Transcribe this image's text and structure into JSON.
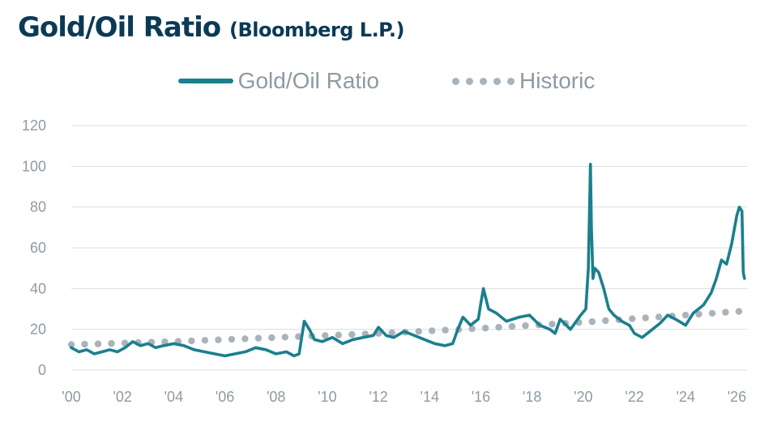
{
  "chart_data": {
    "type": "line",
    "title": "Gold/Oil Ratio",
    "subtitle": "(Bloomberg L.P.)",
    "xlabel": "",
    "ylabel": "",
    "ylim": [
      0,
      120
    ],
    "xlim": [
      2000,
      2026.4
    ],
    "grid": true,
    "legend_position": "top-center",
    "x_ticks": [
      {
        "label": "'00",
        "year": 2000
      },
      {
        "label": "'02",
        "year": 2002
      },
      {
        "label": "'04",
        "year": 2004
      },
      {
        "label": "'06",
        "year": 2006
      },
      {
        "label": "'08",
        "year": 2008
      },
      {
        "label": "'10",
        "year": 2010
      },
      {
        "label": "'12",
        "year": 2012
      },
      {
        "label": "'14",
        "year": 2014
      },
      {
        "label": "'16",
        "year": 2016
      },
      {
        "label": "'18",
        "year": 2018
      },
      {
        "label": "'20",
        "year": 2020
      },
      {
        "label": "'22",
        "year": 2022
      },
      {
        "label": "'24",
        "year": 2024
      },
      {
        "label": "'26",
        "year": 2026
      }
    ],
    "y_ticks": [
      "0",
      "20",
      "40",
      "60",
      "80",
      "100",
      "120"
    ],
    "colors": {
      "ratio": "#1b7f8e",
      "historic": "#a9b3bb",
      "grid": "#d9dde0"
    },
    "series": [
      {
        "name": "Gold/Oil Ratio",
        "style": "solid",
        "x": [
          2000.0,
          2000.3,
          2000.6,
          2000.9,
          2001.2,
          2001.5,
          2001.8,
          2002.1,
          2002.4,
          2002.7,
          2003.0,
          2003.3,
          2003.6,
          2004.0,
          2004.4,
          2004.8,
          2005.2,
          2005.6,
          2006.0,
          2006.4,
          2006.8,
          2007.2,
          2007.6,
          2008.0,
          2008.4,
          2008.7,
          2008.9,
          2009.0,
          2009.1,
          2009.3,
          2009.5,
          2009.8,
          2010.2,
          2010.6,
          2011.0,
          2011.4,
          2011.8,
          2012.0,
          2012.3,
          2012.6,
          2013.0,
          2013.4,
          2013.8,
          2014.2,
          2014.6,
          2014.9,
          2015.1,
          2015.3,
          2015.6,
          2015.9,
          2016.0,
          2016.1,
          2016.3,
          2016.6,
          2017.0,
          2017.5,
          2017.9,
          2018.3,
          2018.7,
          2018.9,
          2019.1,
          2019.5,
          2019.9,
          2020.1,
          2020.2,
          2020.28,
          2020.32,
          2020.38,
          2020.45,
          2020.6,
          2020.8,
          2021.0,
          2021.2,
          2021.5,
          2021.8,
          2022.0,
          2022.3,
          2022.7,
          2023.0,
          2023.3,
          2023.6,
          2024.0,
          2024.3,
          2024.7,
          2025.0,
          2025.2,
          2025.4,
          2025.6,
          2025.8,
          2026.0,
          2026.1,
          2026.2,
          2026.25,
          2026.3
        ],
        "values": [
          11,
          9,
          10,
          8,
          9,
          10,
          9,
          11,
          14,
          12,
          13,
          11,
          12,
          13,
          12,
          10,
          9,
          8,
          7,
          8,
          9,
          11,
          10,
          8,
          9,
          7,
          8,
          16,
          24,
          20,
          15,
          14,
          16,
          13,
          15,
          16,
          17,
          21,
          17,
          16,
          19,
          17,
          15,
          13,
          12,
          13,
          20,
          26,
          22,
          25,
          33,
          40,
          30,
          28,
          24,
          26,
          27,
          22,
          20,
          18,
          25,
          20,
          27,
          30,
          50,
          101,
          70,
          45,
          50,
          48,
          40,
          30,
          27,
          24,
          22,
          18,
          16,
          20,
          23,
          27,
          25,
          22,
          28,
          32,
          38,
          45,
          54,
          52,
          62,
          76,
          80,
          78,
          48,
          45
        ]
      },
      {
        "name": "Historic",
        "style": "dotted",
        "x": [
          2000,
          2004,
          2008,
          2012,
          2016,
          2020,
          2024,
          2026.3
        ],
        "values": [
          12.5,
          14,
          16,
          18,
          20.5,
          23.5,
          27,
          29
        ]
      }
    ]
  }
}
